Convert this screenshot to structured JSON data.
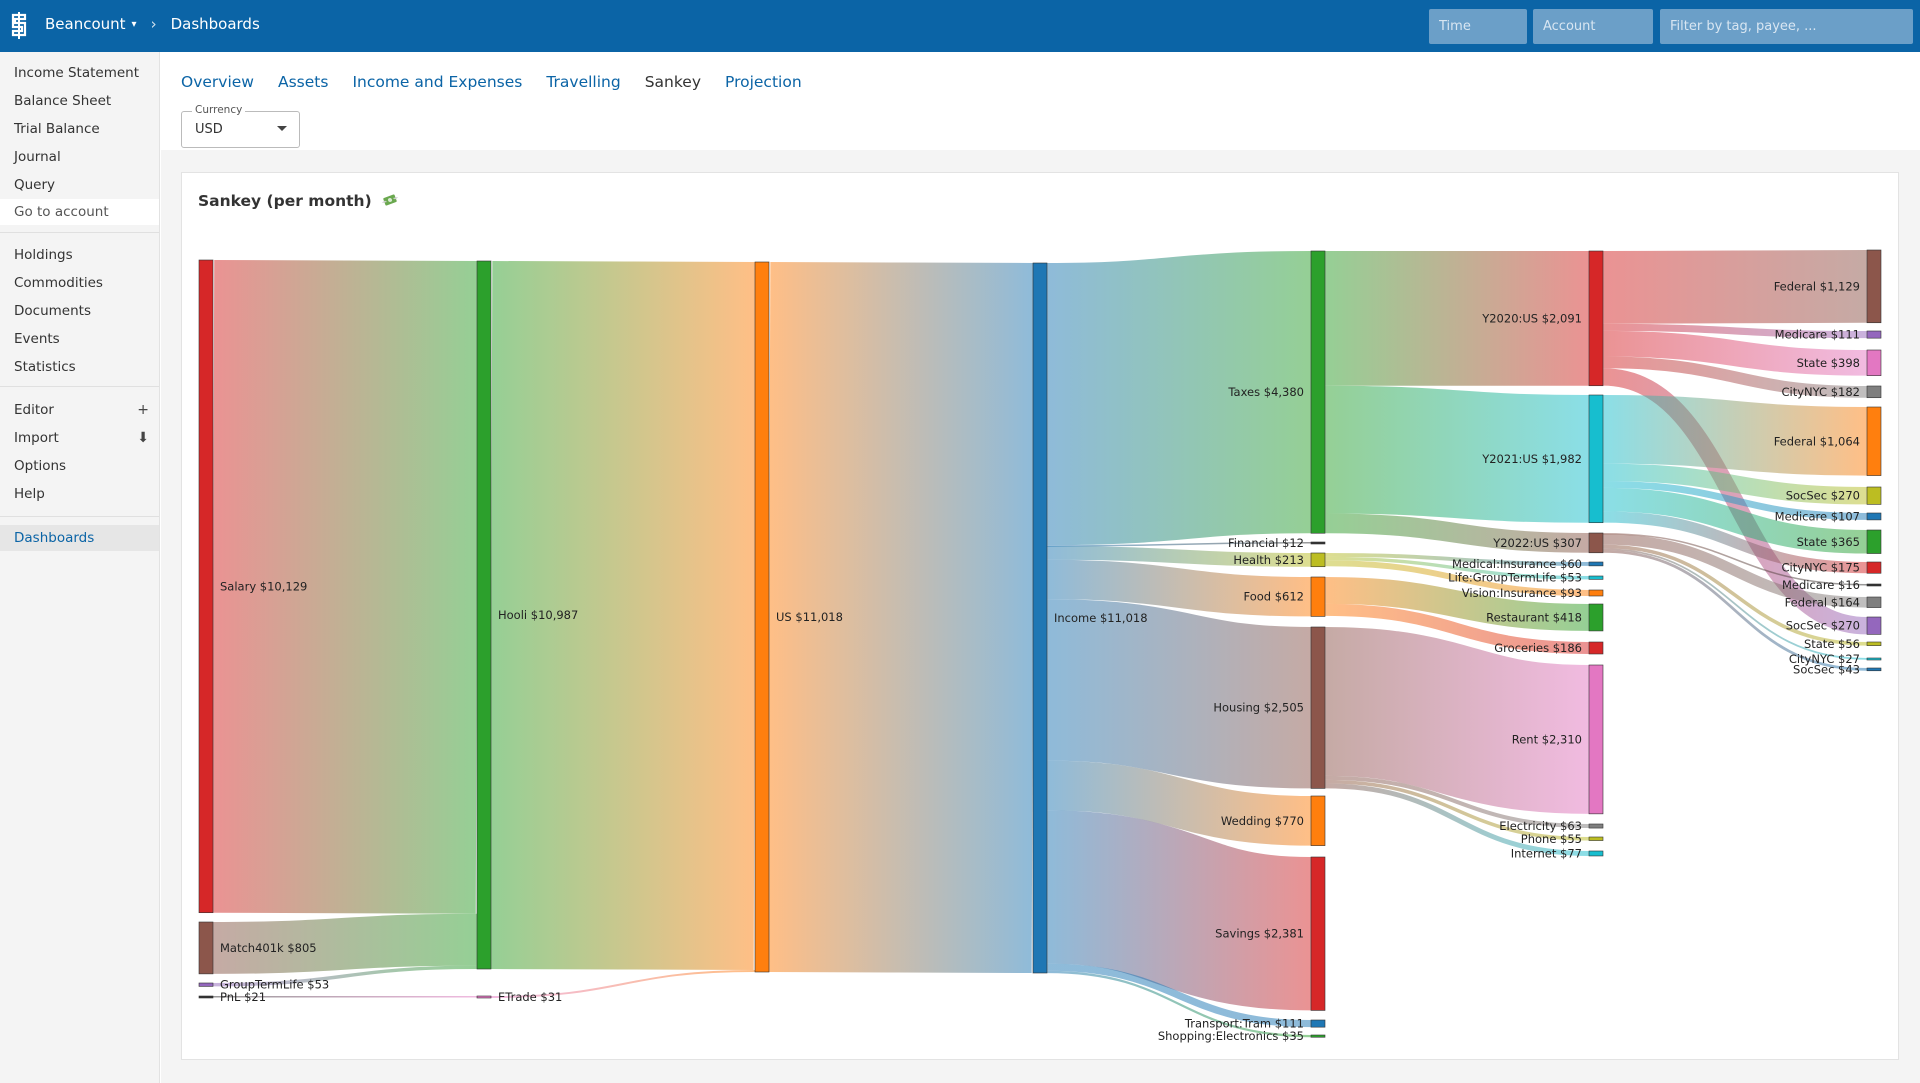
{
  "header": {
    "app_name": "Beancount",
    "breadcrumb": "Dashboards",
    "time_placeholder": "Time",
    "account_placeholder": "Account",
    "filter_placeholder": "Filter by tag, payee, ..."
  },
  "sidebar": {
    "reports": [
      "Income Statement",
      "Balance Sheet",
      "Trial Balance",
      "Journal",
      "Query"
    ],
    "go_to_account": "Go to account",
    "browse": [
      "Holdings",
      "Commodities",
      "Documents",
      "Events",
      "Statistics"
    ],
    "tools": [
      {
        "label": "Editor",
        "icon": "+",
        "icon_name": "plus-icon"
      },
      {
        "label": "Import",
        "icon": "⬇",
        "icon_name": "download-icon"
      },
      {
        "label": "Options",
        "icon": "",
        "icon_name": ""
      },
      {
        "label": "Help",
        "icon": "",
        "icon_name": ""
      }
    ],
    "extensions": [
      "Dashboards"
    ]
  },
  "tabs": {
    "items": [
      "Overview",
      "Assets",
      "Income and Expenses",
      "Travelling",
      "Sankey",
      "Projection"
    ],
    "active": "Sankey"
  },
  "currency": {
    "label": "Currency",
    "value": "USD"
  },
  "panel": {
    "title": "Sankey (per month)",
    "title_icon": "money-with-wings-icon"
  },
  "chart_data": {
    "type": "sankey",
    "title": "Sankey (per month)",
    "currency_symbol": "$",
    "nodes": [
      {
        "id": "salary",
        "label": "Salary $10,129",
        "value": 10129,
        "color": "#d62728"
      },
      {
        "id": "match401k",
        "label": "Match401k $805",
        "value": 805,
        "color": "#8c564b"
      },
      {
        "id": "grouptermlife",
        "label": "GroupTermLife $53",
        "value": 53,
        "color": "#9467bd"
      },
      {
        "id": "pnl",
        "label": "PnL $21",
        "value": 21,
        "color": "#333333"
      },
      {
        "id": "hooli",
        "label": "Hooli $10,987",
        "value": 10987,
        "color": "#2ca02c"
      },
      {
        "id": "etrade",
        "label": "ETrade $31",
        "value": 31,
        "color": "#e377c2"
      },
      {
        "id": "us",
        "label": "US $11,018",
        "value": 11018,
        "color": "#ff7f0e"
      },
      {
        "id": "income",
        "label": "Income $11,018",
        "value": 11018,
        "color": "#1f77b4"
      },
      {
        "id": "taxes",
        "label": "Taxes $4,380",
        "value": 4380,
        "color": "#2ca02c"
      },
      {
        "id": "financial",
        "label": "Financial $12",
        "value": 12,
        "color": "#333333"
      },
      {
        "id": "health",
        "label": "Health $213",
        "value": 213,
        "color": "#bcbd22"
      },
      {
        "id": "food",
        "label": "Food $612",
        "value": 612,
        "color": "#ff7f0e"
      },
      {
        "id": "housing",
        "label": "Housing $2,505",
        "value": 2505,
        "color": "#8c564b"
      },
      {
        "id": "wedding",
        "label": "Wedding $770",
        "value": 770,
        "color": "#ff7f0e"
      },
      {
        "id": "savings",
        "label": "Savings $2,381",
        "value": 2381,
        "color": "#d62728"
      },
      {
        "id": "tram",
        "label": "Transport:Tram $111",
        "value": 111,
        "color": "#1f77b4"
      },
      {
        "id": "electronics",
        "label": "Shopping:Electronics $35",
        "value": 35,
        "color": "#2ca02c"
      },
      {
        "id": "y2020",
        "label": "Y2020:US $2,091",
        "value": 2091,
        "color": "#d62728"
      },
      {
        "id": "y2021",
        "label": "Y2021:US $1,982",
        "value": 1982,
        "color": "#17becf"
      },
      {
        "id": "y2022",
        "label": "Y2022:US $307",
        "value": 307,
        "color": "#8c564b"
      },
      {
        "id": "medins",
        "label": "Medical:Insurance $60",
        "value": 60,
        "color": "#1f77b4"
      },
      {
        "id": "lifegtl",
        "label": "Life:GroupTermLife $53",
        "value": 53,
        "color": "#17becf"
      },
      {
        "id": "visins",
        "label": "Vision:Insurance $93",
        "value": 93,
        "color": "#ff7f0e"
      },
      {
        "id": "restaurant",
        "label": "Restaurant $418",
        "value": 418,
        "color": "#2ca02c"
      },
      {
        "id": "groceries",
        "label": "Groceries $186",
        "value": 186,
        "color": "#d62728"
      },
      {
        "id": "rent",
        "label": "Rent $2,310",
        "value": 2310,
        "color": "#e377c2"
      },
      {
        "id": "electricity",
        "label": "Electricity $63",
        "value": 63,
        "color": "#7f7f7f"
      },
      {
        "id": "phone",
        "label": "Phone $55",
        "value": 55,
        "color": "#bcbd22"
      },
      {
        "id": "internet",
        "label": "Internet $77",
        "value": 77,
        "color": "#17becf"
      },
      {
        "id": "fed20",
        "label": "Federal $1,129",
        "value": 1129,
        "color": "#8c564b"
      },
      {
        "id": "med20",
        "label": "Medicare $111",
        "value": 111,
        "color": "#9467bd"
      },
      {
        "id": "state20",
        "label": "State $398",
        "value": 398,
        "color": "#e377c2"
      },
      {
        "id": "city20",
        "label": "CityNYC $182",
        "value": 182,
        "color": "#7f7f7f"
      },
      {
        "id": "fed21",
        "label": "Federal $1,064",
        "value": 1064,
        "color": "#ff7f0e"
      },
      {
        "id": "soc21",
        "label": "SocSec $270",
        "value": 270,
        "color": "#bcbd22"
      },
      {
        "id": "med21",
        "label": "Medicare $107",
        "value": 107,
        "color": "#1f77b4"
      },
      {
        "id": "state21",
        "label": "State $365",
        "value": 365,
        "color": "#2ca02c"
      },
      {
        "id": "city21",
        "label": "CityNYC $175",
        "value": 175,
        "color": "#d62728"
      },
      {
        "id": "med22",
        "label": "Medicare $16",
        "value": 16,
        "color": "#333333"
      },
      {
        "id": "fed22",
        "label": "Federal $164",
        "value": 164,
        "color": "#7f7f7f"
      },
      {
        "id": "soc20",
        "label": "SocSec $270",
        "value": 270,
        "color": "#9467bd"
      },
      {
        "id": "state22",
        "label": "State $56",
        "value": 56,
        "color": "#bcbd22"
      },
      {
        "id": "city22",
        "label": "CityNYC $27",
        "value": 27,
        "color": "#17becf"
      },
      {
        "id": "soc22",
        "label": "SocSec $43",
        "value": 43,
        "color": "#1f77b4"
      }
    ],
    "links": [
      {
        "source": "salary",
        "target": "hooli",
        "value": 10129
      },
      {
        "source": "match401k",
        "target": "hooli",
        "value": 805
      },
      {
        "source": "grouptermlife",
        "target": "hooli",
        "value": 53
      },
      {
        "source": "pnl",
        "target": "etrade",
        "value": 21
      },
      {
        "source": "hooli",
        "target": "us",
        "value": 10987
      },
      {
        "source": "etrade",
        "target": "us",
        "value": 31
      },
      {
        "source": "us",
        "target": "income",
        "value": 11018
      },
      {
        "source": "income",
        "target": "taxes",
        "value": 4380
      },
      {
        "source": "income",
        "target": "financial",
        "value": 12
      },
      {
        "source": "income",
        "target": "health",
        "value": 213
      },
      {
        "source": "income",
        "target": "food",
        "value": 612
      },
      {
        "source": "income",
        "target": "housing",
        "value": 2505
      },
      {
        "source": "income",
        "target": "wedding",
        "value": 770
      },
      {
        "source": "income",
        "target": "savings",
        "value": 2381
      },
      {
        "source": "income",
        "target": "tram",
        "value": 111
      },
      {
        "source": "income",
        "target": "electronics",
        "value": 35
      },
      {
        "source": "taxes",
        "target": "y2020",
        "value": 2091
      },
      {
        "source": "taxes",
        "target": "y2021",
        "value": 1982
      },
      {
        "source": "taxes",
        "target": "y2022",
        "value": 307
      },
      {
        "source": "health",
        "target": "medins",
        "value": 60
      },
      {
        "source": "health",
        "target": "lifegtl",
        "value": 53
      },
      {
        "source": "health",
        "target": "visins",
        "value": 93
      },
      {
        "source": "food",
        "target": "restaurant",
        "value": 418
      },
      {
        "source": "food",
        "target": "groceries",
        "value": 186
      },
      {
        "source": "housing",
        "target": "rent",
        "value": 2310
      },
      {
        "source": "housing",
        "target": "electricity",
        "value": 63
      },
      {
        "source": "housing",
        "target": "phone",
        "value": 55
      },
      {
        "source": "housing",
        "target": "internet",
        "value": 77
      },
      {
        "source": "y2020",
        "target": "fed20",
        "value": 1129
      },
      {
        "source": "y2020",
        "target": "med20",
        "value": 111
      },
      {
        "source": "y2020",
        "target": "state20",
        "value": 398
      },
      {
        "source": "y2020",
        "target": "city20",
        "value": 182
      },
      {
        "source": "y2020",
        "target": "soc20",
        "value": 270
      },
      {
        "source": "y2021",
        "target": "fed21",
        "value": 1064
      },
      {
        "source": "y2021",
        "target": "soc21",
        "value": 270
      },
      {
        "source": "y2021",
        "target": "med21",
        "value": 107
      },
      {
        "source": "y2021",
        "target": "state21",
        "value": 365
      },
      {
        "source": "y2021",
        "target": "city21",
        "value": 175
      },
      {
        "source": "y2022",
        "target": "med22",
        "value": 16
      },
      {
        "source": "y2022",
        "target": "fed22",
        "value": 164
      },
      {
        "source": "y2022",
        "target": "state22",
        "value": 56
      },
      {
        "source": "y2022",
        "target": "city22",
        "value": 27
      },
      {
        "source": "y2022",
        "target": "soc22",
        "value": 43
      }
    ]
  }
}
